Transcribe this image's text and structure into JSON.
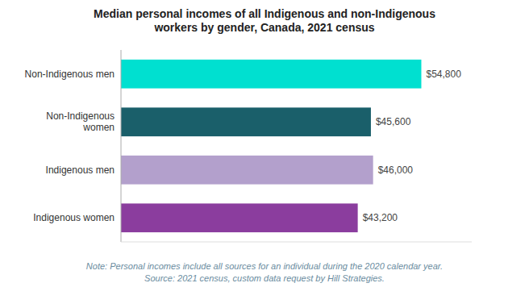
{
  "chart_data": {
    "type": "bar",
    "orientation": "horizontal",
    "title": "Median personal incomes of all Indigenous and non-Indigenous\nworkers by gender, Canada, 2021 census",
    "categories": [
      "Non-Indigenous men",
      "Non-Indigenous\nwomen",
      "Indigenous men",
      "Indigenous women"
    ],
    "values": [
      54800,
      45600,
      46000,
      43200
    ],
    "value_labels": [
      "$54,800",
      "$45,600",
      "$46,000",
      "$43,200"
    ],
    "data_labels": true,
    "colors": [
      "#00e0d0",
      "#1a5f6a",
      "#b3a0cc",
      "#8b3d9e"
    ],
    "xlim": [
      0,
      64000
    ],
    "tick_labels": "y",
    "grid": false,
    "annotations": [
      "Note: Personal incomes include all sources for an individual during the 2020 calendar year.\nSource: 2021 census, custom data request by Hill Strategies."
    ]
  }
}
